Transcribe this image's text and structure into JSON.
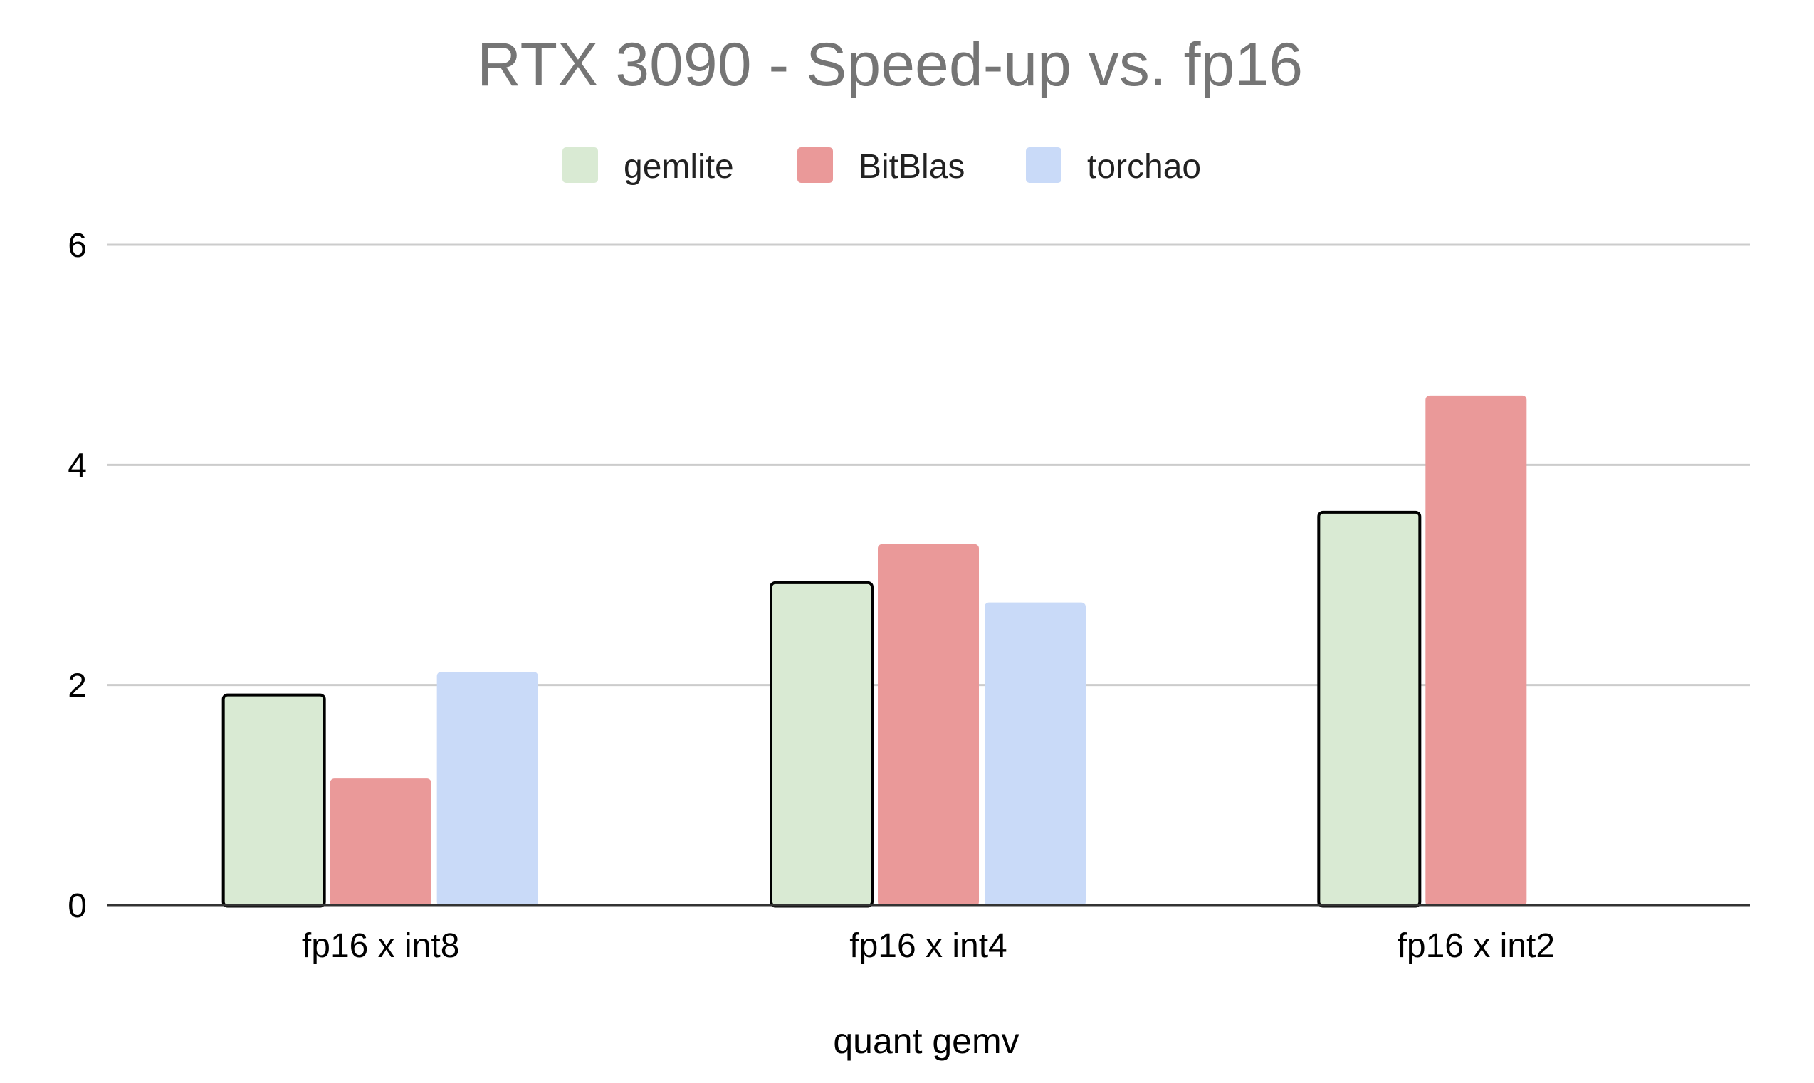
{
  "chart_data": {
    "type": "bar",
    "title": "RTX 3090 - Speed-up vs. fp16",
    "xlabel": "quant gemv",
    "ylabel": "",
    "categories": [
      "fp16 x int8",
      "fp16 x int4",
      "fp16 x int2"
    ],
    "series": [
      {
        "name": "gemlite",
        "values": [
          1.91,
          2.93,
          3.57
        ],
        "color": "#d9ead3",
        "outlined": true
      },
      {
        "name": "BitBlas",
        "values": [
          1.15,
          3.28,
          4.63
        ],
        "color": "#ea9999",
        "outlined": false
      },
      {
        "name": "torchao",
        "values": [
          2.12,
          2.75,
          null
        ],
        "color": "#c9daf8",
        "outlined": false
      }
    ],
    "yticks": [
      "0",
      "2",
      "4",
      "6"
    ],
    "ylim": [
      0,
      6
    ],
    "grid": true,
    "legend_position": "top-center"
  }
}
